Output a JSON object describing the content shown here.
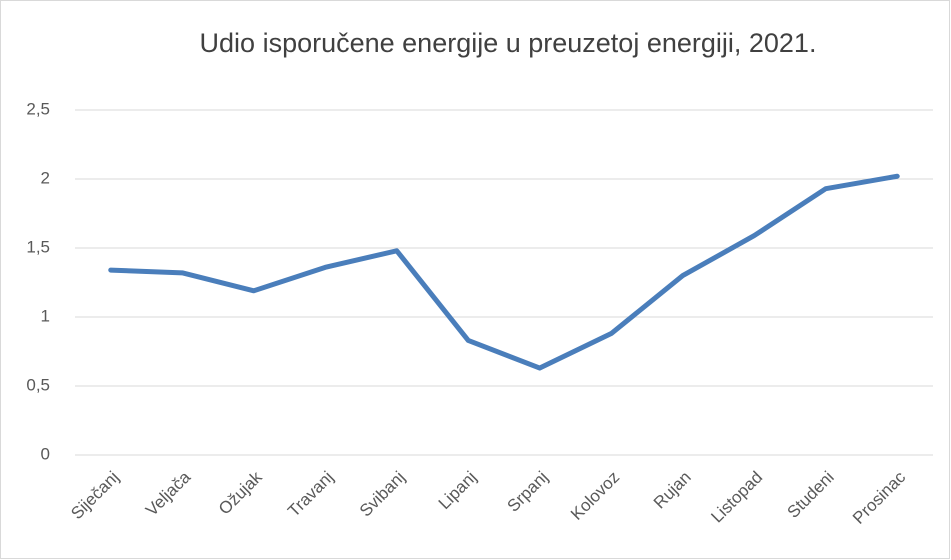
{
  "chart_data": {
    "type": "line",
    "title": "Udio isporučene energije u preuzetoj energiji, 2021.",
    "categories": [
      "Siječanj",
      "Veljača",
      "Ožujak",
      "Travanj",
      "Svibanj",
      "Lipanj",
      "Srpanj",
      "Kolovoz",
      "Rujan",
      "Listopad",
      "Studeni",
      "Prosinac"
    ],
    "values": [
      1.34,
      1.32,
      1.19,
      1.36,
      1.48,
      0.83,
      0.63,
      0.88,
      1.3,
      1.59,
      1.93,
      2.02
    ],
    "color": "#4a7ebb",
    "ylim": [
      0,
      2.5
    ],
    "yticks": [
      0,
      {
        "value": 0.5,
        "label": "0,5"
      },
      1,
      {
        "value": 1.5,
        "label": "1,5"
      },
      2,
      {
        "value": 2.5,
        "label": "2,5"
      }
    ],
    "grid": true
  }
}
